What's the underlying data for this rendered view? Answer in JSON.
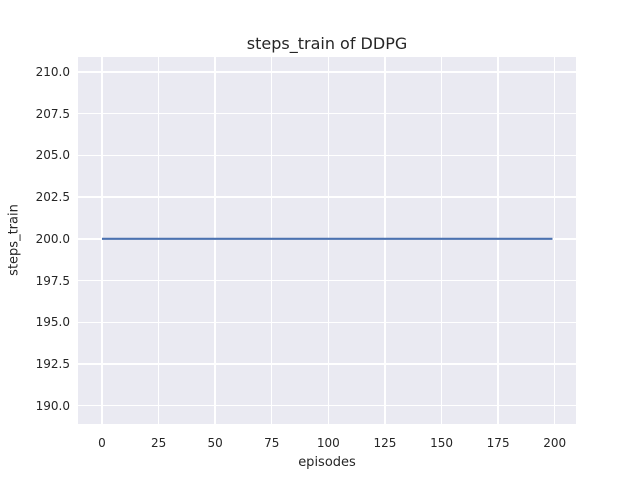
{
  "chart_data": {
    "type": "line",
    "title": "steps_train of DDPG",
    "xlabel": "episodes",
    "ylabel": "steps_train",
    "xticks": [
      0,
      25,
      50,
      75,
      100,
      125,
      150,
      175,
      200
    ],
    "xtick_labels": [
      "0",
      "25",
      "50",
      "75",
      "100",
      "125",
      "150",
      "175",
      "200"
    ],
    "yticks": [
      190.0,
      192.5,
      195.0,
      197.5,
      200.0,
      202.5,
      205.0,
      207.5,
      210.0
    ],
    "ytick_labels": [
      "190.0",
      "192.5",
      "195.0",
      "197.5",
      "200.0",
      "202.5",
      "205.0",
      "207.5",
      "210.0"
    ],
    "xlim": [
      -10.6,
      209.4
    ],
    "ylim": [
      188.9,
      210.9
    ],
    "grid": true,
    "legend": null,
    "series": [
      {
        "name": "steps_train",
        "color": "#4C72B0",
        "x": [
          0,
          199
        ],
        "y": [
          200,
          200
        ]
      }
    ],
    "styles": {
      "figure_bg": "#FFFFFF",
      "plot_bg": "#EAEAF2",
      "grid_color": "#FFFFFF",
      "text_color": "#262626"
    }
  }
}
